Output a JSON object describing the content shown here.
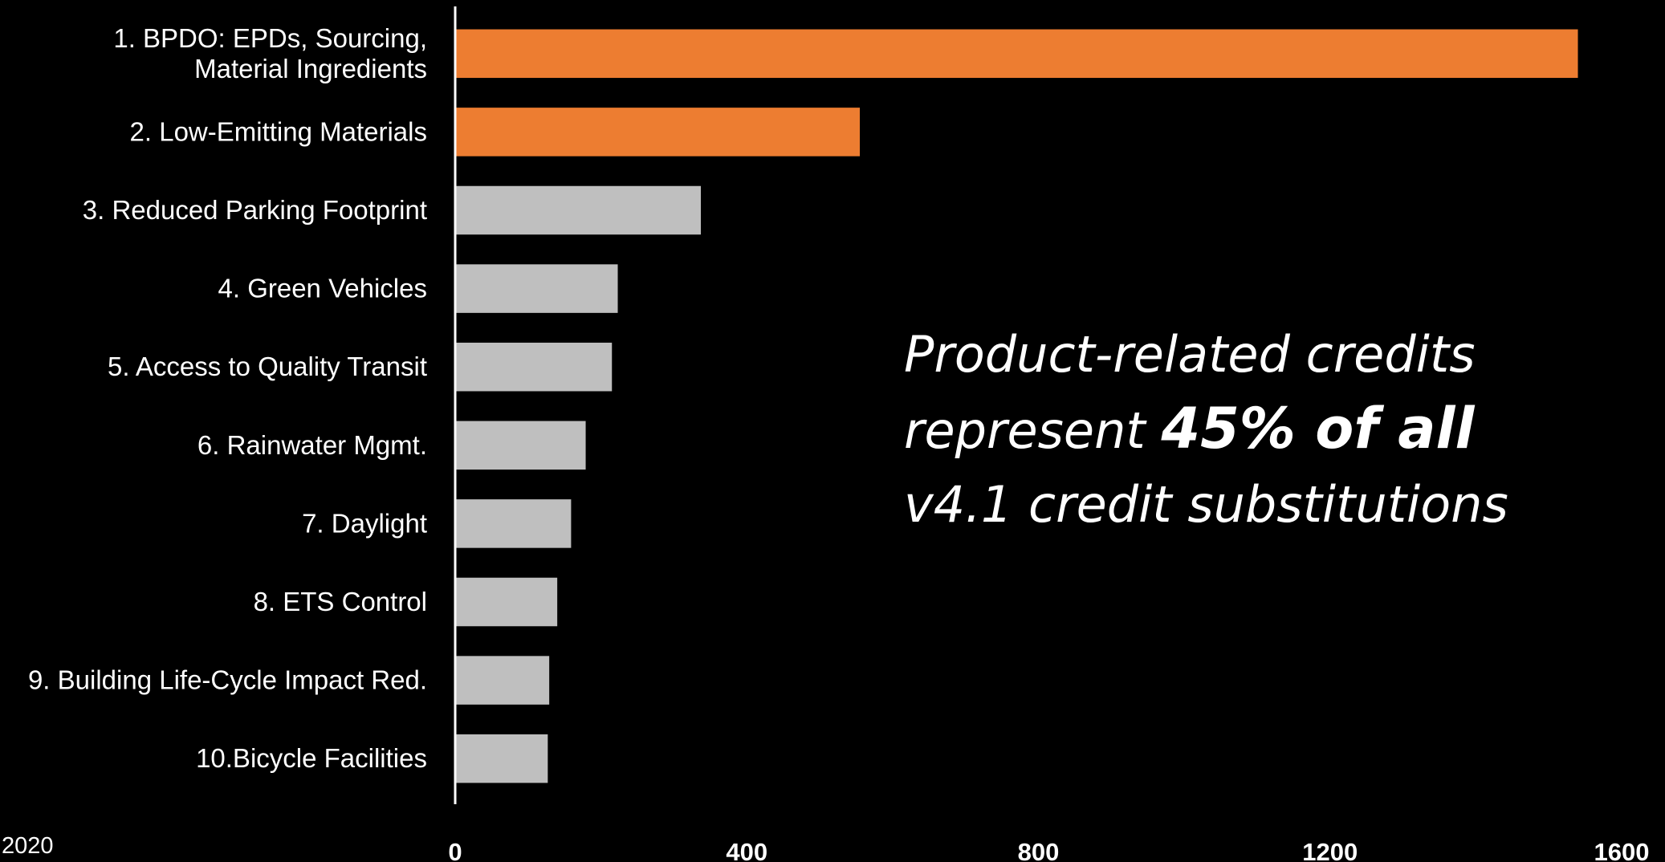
{
  "chart_data": {
    "type": "bar",
    "orientation": "horizontal",
    "categories": [
      [
        "1. BPDO: EPDs, Sourcing,",
        "Material Ingredients"
      ],
      [
        "2. Low-Emitting Materials"
      ],
      [
        "3. Reduced Parking Footprint"
      ],
      [
        "4. Green Vehicles"
      ],
      [
        "5. Access to Quality Transit"
      ],
      [
        "6. Rainwater Mgmt."
      ],
      [
        "7. Daylight"
      ],
      [
        "8. ETS Control"
      ],
      [
        "9. Building Life-Cycle Impact Red."
      ],
      [
        "10.Bicycle Facilities"
      ]
    ],
    "values": [
      1540,
      555,
      337,
      223,
      215,
      179,
      159,
      140,
      129,
      127
    ],
    "highlight": [
      true,
      true,
      false,
      false,
      false,
      false,
      false,
      false,
      false,
      false
    ],
    "xlim": [
      0,
      1600
    ],
    "xticks": [
      "0",
      "400",
      "800",
      "1200",
      "1600"
    ],
    "colors": {
      "highlight": "#ED7D31",
      "default": "#BFBFBF",
      "axis": "#FFFFFF",
      "background": "#000000"
    },
    "grid": false
  },
  "callout": {
    "line1": "Product-related credits",
    "line2_pre": "represent ",
    "line2_strong": "45% of all",
    "line3": "v4.1 credit substitutions"
  },
  "footer": {
    "year": "2020"
  }
}
